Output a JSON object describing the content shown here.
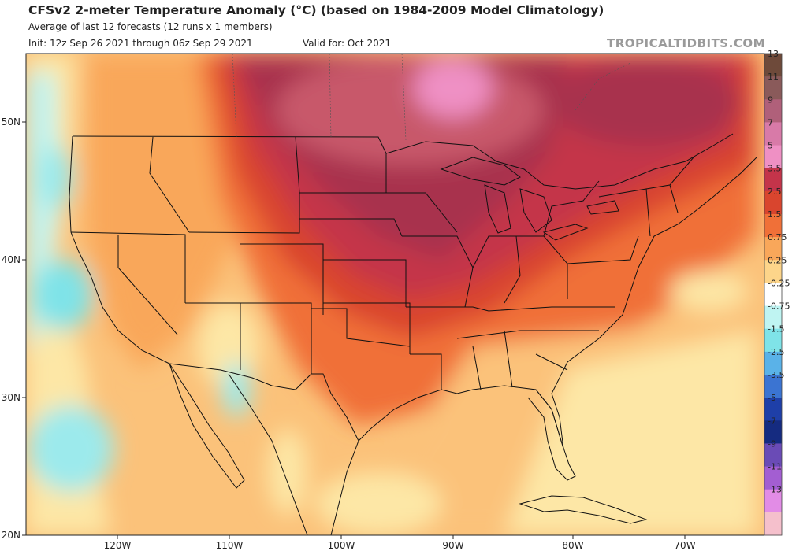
{
  "header": {
    "title": "CFSv2 2-meter Temperature Anomaly (°C) (based on 1984-2009 Model Climatology)",
    "subtitle": "Average of last 12 forecasts (12 runs x 1 members)",
    "init": "Init: 12z Sep 26 2021 through 06z Sep 29 2021",
    "valid": "Valid for: Oct 2021",
    "source": "TROPICALTIDBITS.COM"
  },
  "map": {
    "region": "Contiguous United States",
    "lat_labels": [
      "50N",
      "40N",
      "30N",
      "20N"
    ],
    "lon_labels": [
      "120W",
      "110W",
      "100W",
      "90W",
      "80W",
      "70W"
    ]
  },
  "colorbar": {
    "labels": [
      "13",
      "11",
      "9",
      "7",
      "5",
      "3.5",
      "2.5",
      "1.5",
      "0.75",
      "0.25",
      "-0.25",
      "-0.75",
      "-1.5",
      "-2.5",
      "-3.5",
      "-5",
      "-7",
      "-9",
      "-11",
      "-13"
    ],
    "colors": [
      "#6e4a3a",
      "#8a5a5a",
      "#b0607a",
      "#d87aa8",
      "#ef90c4",
      "#c4344a",
      "#d9452e",
      "#f07038",
      "#f9a75a",
      "#fdd58a",
      "#ffffff",
      "#bff4f2",
      "#7fe3e8",
      "#5ab2e8",
      "#3b74d2",
      "#1e3fa8",
      "#152b80",
      "#6a4bb6",
      "#a35ed2",
      "#e28ce6",
      "#f5c0cc"
    ]
  }
}
